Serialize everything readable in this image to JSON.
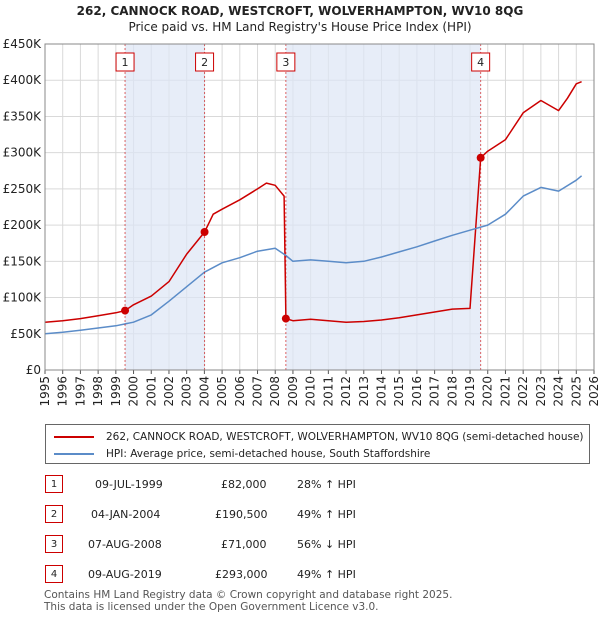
{
  "chart_data": {
    "type": "line",
    "title": "262, CANNOCK ROAD, WESTCROFT, WOLVERHAMPTON, WV10 8QG",
    "subtitle": "Price paid vs. HM Land Registry's House Price Index (HPI)",
    "x_ticks": [
      "1995",
      "1996",
      "1997",
      "1998",
      "1999",
      "2000",
      "2001",
      "2002",
      "2003",
      "2004",
      "2005",
      "2006",
      "2007",
      "2008",
      "2009",
      "2010",
      "2011",
      "2012",
      "2013",
      "2014",
      "2015",
      "2016",
      "2017",
      "2018",
      "2019",
      "2020",
      "2021",
      "2022",
      "2023",
      "2024",
      "2025",
      "2026"
    ],
    "y_ticks": [
      {
        "v": 0,
        "label": "£0"
      },
      {
        "v": 50000,
        "label": "£50K"
      },
      {
        "v": 100000,
        "label": "£100K"
      },
      {
        "v": 150000,
        "label": "£150K"
      },
      {
        "v": 200000,
        "label": "£200K"
      },
      {
        "v": 250000,
        "label": "£250K"
      },
      {
        "v": 300000,
        "label": "£300K"
      },
      {
        "v": 350000,
        "label": "£350K"
      },
      {
        "v": 400000,
        "label": "£400K"
      },
      {
        "v": 450000,
        "label": "£450K"
      }
    ],
    "xlim": [
      1995,
      2026
    ],
    "ylim": [
      0,
      450000
    ],
    "grid": true,
    "shaded_spans": [
      [
        1999.52,
        2004.01
      ],
      [
        2008.6,
        2019.6
      ]
    ],
    "series": [
      {
        "name": "262, CANNOCK ROAD, WESTCROFT, WOLVERHAMPTON, WV10 8QG (semi-detached house)",
        "color": "#cc0000",
        "points": [
          [
            1995,
            66000
          ],
          [
            1996,
            68000
          ],
          [
            1997,
            71000
          ],
          [
            1998,
            75000
          ],
          [
            1999,
            79000
          ],
          [
            1999.52,
            82000
          ],
          [
            2000,
            90000
          ],
          [
            2001,
            102000
          ],
          [
            2002,
            122000
          ],
          [
            2003,
            160000
          ],
          [
            2004.01,
            190500
          ],
          [
            2004.5,
            215000
          ],
          [
            2005,
            222000
          ],
          [
            2006,
            235000
          ],
          [
            2007,
            250000
          ],
          [
            2007.5,
            258000
          ],
          [
            2008,
            255000
          ],
          [
            2008.5,
            240000
          ],
          [
            2008.6,
            71000
          ],
          [
            2009,
            68000
          ],
          [
            2010,
            70000
          ],
          [
            2011,
            68000
          ],
          [
            2012,
            66000
          ],
          [
            2013,
            67000
          ],
          [
            2014,
            69000
          ],
          [
            2015,
            72000
          ],
          [
            2016,
            76000
          ],
          [
            2017,
            80000
          ],
          [
            2018,
            84000
          ],
          [
            2019,
            85000
          ],
          [
            2019.6,
            293000
          ],
          [
            2020,
            302000
          ],
          [
            2021,
            318000
          ],
          [
            2022,
            355000
          ],
          [
            2023,
            372000
          ],
          [
            2024,
            358000
          ],
          [
            2024.5,
            375000
          ],
          [
            2025,
            395000
          ],
          [
            2025.3,
            398000
          ]
        ]
      },
      {
        "name": "HPI: Average price, semi-detached house, South Staffordshire",
        "color": "#5b8cc8",
        "points": [
          [
            1995,
            50000
          ],
          [
            1996,
            52000
          ],
          [
            1997,
            55000
          ],
          [
            1998,
            58000
          ],
          [
            1999,
            61000
          ],
          [
            2000,
            66000
          ],
          [
            2001,
            76000
          ],
          [
            2002,
            95000
          ],
          [
            2003,
            115000
          ],
          [
            2004,
            135000
          ],
          [
            2005,
            148000
          ],
          [
            2006,
            155000
          ],
          [
            2007,
            164000
          ],
          [
            2008,
            168000
          ],
          [
            2008.6,
            158000
          ],
          [
            2009,
            150000
          ],
          [
            2010,
            152000
          ],
          [
            2011,
            150000
          ],
          [
            2012,
            148000
          ],
          [
            2013,
            150000
          ],
          [
            2014,
            156000
          ],
          [
            2015,
            163000
          ],
          [
            2016,
            170000
          ],
          [
            2017,
            178000
          ],
          [
            2018,
            186000
          ],
          [
            2019,
            193000
          ],
          [
            2020,
            200000
          ],
          [
            2021,
            215000
          ],
          [
            2022,
            240000
          ],
          [
            2023,
            252000
          ],
          [
            2024,
            247000
          ],
          [
            2025,
            262000
          ],
          [
            2025.3,
            268000
          ]
        ]
      }
    ],
    "sales_markers": [
      {
        "label": "1",
        "x": 1999.52,
        "y": 82000
      },
      {
        "label": "2",
        "x": 2004.01,
        "y": 190500
      },
      {
        "label": "3",
        "x": 2008.6,
        "y": 71000
      },
      {
        "label": "4",
        "x": 2019.6,
        "y": 293000
      }
    ]
  },
  "legend": {
    "property_label": "262, CANNOCK ROAD, WESTCROFT, WOLVERHAMPTON, WV10 8QG (semi-detached house)",
    "hpi_label": "HPI: Average price, semi-detached house, South Staffordshire",
    "property_color": "#cc0000",
    "hpi_color": "#5b8cc8"
  },
  "sales": [
    {
      "num": "1",
      "date": "09-JUL-1999",
      "price": "£82,000",
      "hpi": "28% ↑ HPI"
    },
    {
      "num": "2",
      "date": "04-JAN-2004",
      "price": "£190,500",
      "hpi": "49% ↑ HPI"
    },
    {
      "num": "3",
      "date": "07-AUG-2008",
      "price": "£71,000",
      "hpi": "56% ↓ HPI"
    },
    {
      "num": "4",
      "date": "09-AUG-2019",
      "price": "£293,000",
      "hpi": "49% ↑ HPI"
    }
  ],
  "footer": {
    "line1": "Contains HM Land Registry data © Crown copyright and database right 2025.",
    "line2": "This data is licensed under the Open Government Licence v3.0."
  }
}
